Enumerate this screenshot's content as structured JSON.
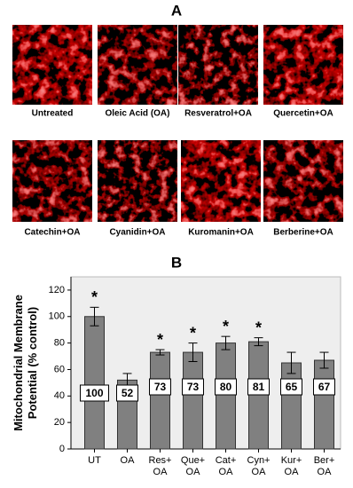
{
  "panel_a": {
    "label": "A",
    "images": [
      "Untreated",
      "Oleic Acid (OA)",
      "Resveratrol+OA",
      "Quercetin+OA",
      "Catechin+OA",
      "Cyanidin+OA",
      "Kuromanin+OA",
      "Berberine+OA"
    ]
  },
  "chart_data": {
    "type": "bar",
    "panel_label": "B",
    "ylabel": [
      "Mitochondrial Membrane",
      "Potential (% control)"
    ],
    "categories": [
      [
        "UT"
      ],
      [
        "OA"
      ],
      [
        "Res+",
        "OA"
      ],
      [
        "Que+",
        "OA"
      ],
      [
        "Cat+",
        "OA"
      ],
      [
        "Cyn+",
        "OA"
      ],
      [
        "Kur+",
        "OA"
      ],
      [
        "Ber+",
        "OA"
      ]
    ],
    "values": [
      100,
      52,
      73,
      73,
      80,
      81,
      65,
      67
    ],
    "errors": [
      7,
      5,
      2,
      7,
      5,
      3,
      8,
      6
    ],
    "significance": [
      "*",
      null,
      "*",
      "*",
      "*",
      "*",
      null,
      null
    ],
    "color": "#808080",
    "ylim": [
      0,
      130
    ],
    "yticks": [
      0,
      20,
      40,
      60,
      80,
      100,
      120
    ]
  }
}
